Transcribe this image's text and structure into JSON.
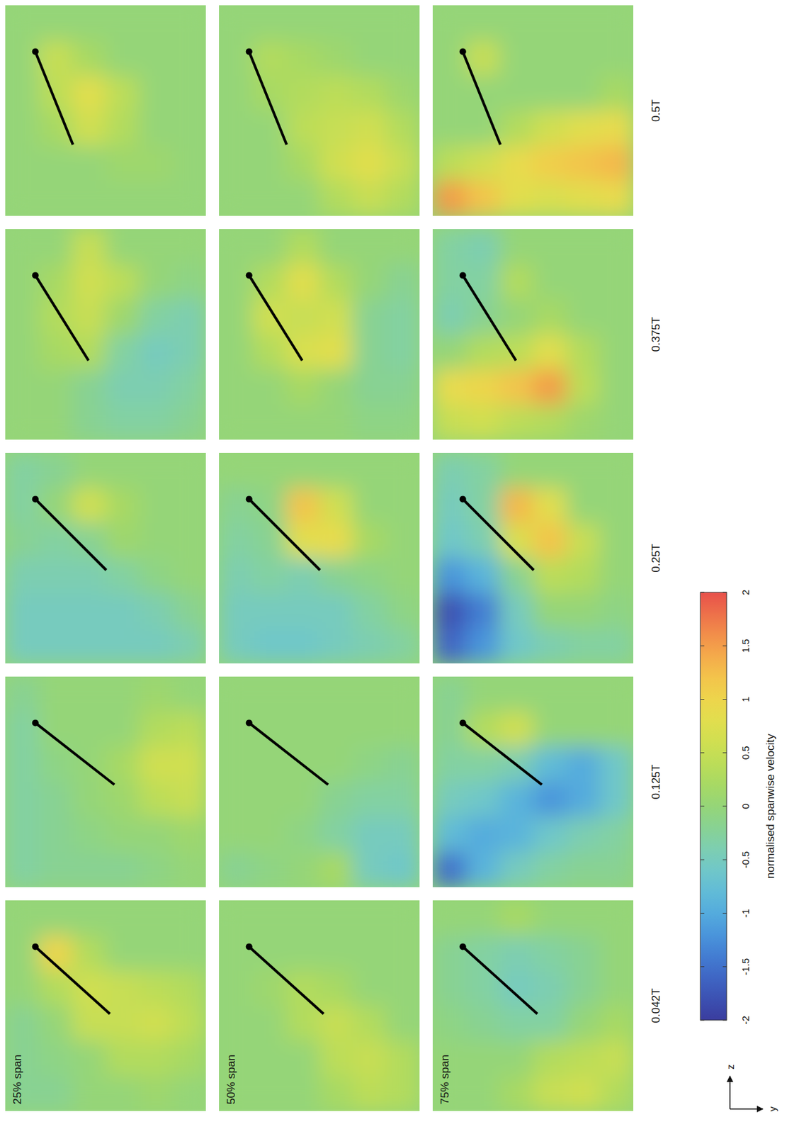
{
  "chart_data": {
    "type": "heatmap",
    "row_labels": [
      "25% span",
      "50% span",
      "75% span"
    ],
    "column_labels": [
      "0.042T",
      "0.125T",
      "0.25T",
      "0.375T",
      "0.5T"
    ],
    "axis_labels": {
      "vertical": "z",
      "horizontal": "y"
    },
    "colorbar": {
      "label": "normalised spanwise velocity",
      "range": [
        -2,
        2
      ],
      "ticks": [
        -2,
        -1.5,
        -1,
        -0.5,
        0,
        0.5,
        1,
        1.5,
        2
      ]
    },
    "panels": [
      [
        {
          "pitch": -42,
          "cells": [
            [
              0,
              0,
              0,
              0,
              0,
              0
            ],
            [
              0,
              1.0,
              0.3,
              0,
              0,
              0
            ],
            [
              0,
              0.3,
              0.6,
              0.5,
              0.4,
              0.3
            ],
            [
              -0.2,
              0,
              0.5,
              0.5,
              0.6,
              0.4
            ],
            [
              -0.2,
              -0.1,
              0,
              0.3,
              0.3,
              0.2
            ],
            [
              -0.2,
              -0.2,
              0,
              0,
              0.1,
              0
            ]
          ]
        },
        {
          "pitch": -38,
          "cells": [
            [
              -0.2,
              0,
              0,
              0,
              0.1,
              0
            ],
            [
              -0.3,
              0,
              0,
              0,
              0.3,
              0.4
            ],
            [
              -0.3,
              -0.1,
              0,
              0.2,
              0.6,
              0.6
            ],
            [
              -0.3,
              -0.2,
              0,
              0.1,
              0.4,
              0.5
            ],
            [
              -0.3,
              -0.2,
              -0.1,
              0,
              0,
              0.1
            ],
            [
              -0.3,
              -0.2,
              -0.2,
              -0.2,
              -0.1,
              0
            ]
          ]
        },
        {
          "pitch": -45,
          "cells": [
            [
              -0.3,
              -0.2,
              0,
              0,
              0,
              0
            ],
            [
              -0.3,
              0,
              0.6,
              0.2,
              0,
              0
            ],
            [
              -0.2,
              -0.3,
              -0.2,
              0.1,
              0,
              0
            ],
            [
              -0.4,
              -0.4,
              -0.4,
              -0.3,
              -0.1,
              0
            ],
            [
              -0.5,
              -0.5,
              -0.5,
              -0.5,
              -0.4,
              -0.2
            ],
            [
              -0.5,
              -0.5,
              -0.5,
              -0.5,
              -0.5,
              -0.4
            ]
          ]
        },
        {
          "pitch": -58,
          "cells": [
            [
              0,
              0,
              0.5,
              0,
              0,
              0
            ],
            [
              0,
              0.2,
              0.6,
              0.4,
              0,
              -0.1
            ],
            [
              0,
              0.3,
              0.5,
              0.1,
              -0.3,
              -0.4
            ],
            [
              0,
              0.2,
              0.3,
              -0.3,
              -0.5,
              -0.4
            ],
            [
              0,
              0,
              -0.2,
              -0.4,
              -0.4,
              -0.3
            ],
            [
              0,
              0,
              -0.2,
              -0.3,
              -0.3,
              -0.2
            ]
          ]
        },
        {
          "pitch": -68,
          "cells": [
            [
              0,
              0,
              0,
              0,
              0,
              0
            ],
            [
              0,
              0.5,
              0.2,
              0,
              0,
              0
            ],
            [
              0,
              0.4,
              0.8,
              0.4,
              0,
              0
            ],
            [
              0,
              0.2,
              0.6,
              0.3,
              0,
              0
            ],
            [
              0,
              0,
              0,
              0.1,
              0.1,
              0
            ],
            [
              0,
              0,
              0,
              0,
              0,
              0
            ]
          ]
        }
      ],
      [
        {
          "pitch": -42,
          "cells": [
            [
              0,
              0,
              0,
              0,
              0,
              0
            ],
            [
              0,
              0,
              0,
              0,
              0,
              0
            ],
            [
              0,
              0.1,
              0.3,
              0.2,
              0,
              0
            ],
            [
              0,
              0,
              0.3,
              0.5,
              0.3,
              0
            ],
            [
              0,
              0,
              0,
              0.4,
              0.5,
              0.3
            ],
            [
              0,
              0,
              0,
              0.2,
              0.4,
              0.3
            ]
          ]
        },
        {
          "pitch": -38,
          "cells": [
            [
              0,
              0,
              0,
              0,
              0,
              0
            ],
            [
              0,
              0,
              0,
              0,
              0,
              0
            ],
            [
              0,
              0,
              0,
              0,
              -0.1,
              -0.2
            ],
            [
              0,
              0,
              0,
              -0.2,
              -0.3,
              -0.3
            ],
            [
              0,
              0,
              -0.1,
              -0.3,
              -0.5,
              -0.5
            ],
            [
              -0.2,
              -0.1,
              0,
              0.2,
              -0.5,
              -0.6
            ]
          ]
        },
        {
          "pitch": -45,
          "cells": [
            [
              0,
              0,
              0,
              0,
              0,
              0
            ],
            [
              -0.2,
              -0.1,
              1.2,
              0.6,
              0,
              0
            ],
            [
              -0.3,
              -0.2,
              0.8,
              0.9,
              0.2,
              0
            ],
            [
              -0.4,
              -0.3,
              -0.4,
              -0.2,
              -0.1,
              0
            ],
            [
              -0.5,
              -0.5,
              -0.5,
              -0.5,
              -0.3,
              -0.1
            ],
            [
              -0.5,
              -0.6,
              -0.6,
              -0.5,
              -0.4,
              -0.3
            ]
          ]
        },
        {
          "pitch": -58,
          "cells": [
            [
              0,
              0,
              0.3,
              0,
              0,
              0
            ],
            [
              0,
              0.3,
              0.8,
              0.3,
              0,
              -0.2
            ],
            [
              0,
              0.6,
              0.5,
              0.6,
              -0.2,
              -0.3
            ],
            [
              0,
              0.3,
              0.7,
              0.8,
              -0.2,
              -0.3
            ],
            [
              0,
              0,
              0.2,
              0,
              -0.2,
              -0.2
            ],
            [
              0,
              0,
              0,
              0,
              -0.1,
              -0.1
            ]
          ]
        },
        {
          "pitch": -68,
          "cells": [
            [
              0,
              0,
              0,
              0,
              0,
              0
            ],
            [
              0,
              0.3,
              0.2,
              0.1,
              0,
              0
            ],
            [
              0,
              0.2,
              0.3,
              0.4,
              0.3,
              0.1
            ],
            [
              0,
              0,
              0.4,
              0.5,
              0.6,
              0.3
            ],
            [
              0,
              0,
              0.2,
              0.6,
              0.8,
              0.5
            ],
            [
              0,
              0,
              0,
              0.3,
              0.5,
              0.3
            ]
          ]
        }
      ],
      [
        {
          "pitch": -42,
          "cells": [
            [
              0,
              0,
              0.2,
              0,
              0,
              0
            ],
            [
              -0.2,
              -0.3,
              -0.4,
              -0.3,
              -0.2,
              0
            ],
            [
              -0.2,
              -0.3,
              -0.5,
              -0.4,
              -0.2,
              0
            ],
            [
              -0.1,
              -0.2,
              -0.3,
              -0.3,
              0,
              0.2
            ],
            [
              0,
              0,
              0,
              0.3,
              0.4,
              0.5
            ],
            [
              0,
              0,
              0.2,
              0.5,
              0.6,
              0.3
            ]
          ]
        },
        {
          "pitch": -38,
          "cells": [
            [
              -0.2,
              0,
              0,
              0,
              0,
              0
            ],
            [
              -0.2,
              0.3,
              0.6,
              0,
              0,
              0
            ],
            [
              -0.3,
              -0.3,
              -0.4,
              -0.8,
              -1.0,
              -0.6
            ],
            [
              -0.5,
              -0.6,
              -0.9,
              -1.2,
              -1.0,
              -0.6
            ],
            [
              -0.8,
              -1.0,
              -0.9,
              -0.6,
              -0.4,
              -0.3
            ],
            [
              -1.5,
              -0.9,
              -0.5,
              -0.3,
              -0.2,
              -0.2
            ]
          ]
        },
        {
          "pitch": -45,
          "cells": [
            [
              -0.4,
              -0.3,
              0,
              0,
              0,
              0
            ],
            [
              -0.5,
              -0.3,
              1.3,
              0.8,
              0,
              0
            ],
            [
              -0.6,
              -0.4,
              0.7,
              1.2,
              0.5,
              0
            ],
            [
              -1.2,
              -0.9,
              -0.2,
              0.4,
              0.3,
              0
            ],
            [
              -1.8,
              -1.4,
              -0.5,
              0,
              0,
              -0.1
            ],
            [
              -1.6,
              -1.2,
              -0.6,
              -0.4,
              -0.3,
              -0.3
            ]
          ]
        },
        {
          "pitch": -58,
          "cells": [
            [
              -0.3,
              -0.4,
              0,
              0,
              0,
              0
            ],
            [
              -0.3,
              -0.3,
              0.3,
              0,
              0,
              0
            ],
            [
              -0.4,
              -0.2,
              0,
              0.2,
              0,
              0
            ],
            [
              0,
              0.3,
              0.4,
              0.8,
              0.3,
              0
            ],
            [
              0.9,
              1.0,
              1.2,
              1.5,
              0.4,
              0
            ],
            [
              0.5,
              0.6,
              0.4,
              0.3,
              0.1,
              0
            ]
          ]
        },
        {
          "pitch": -68,
          "cells": [
            [
              0,
              0,
              0,
              0,
              0,
              0
            ],
            [
              0,
              0.5,
              0,
              0,
              0,
              0
            ],
            [
              0,
              0,
              0,
              0,
              0,
              0.2
            ],
            [
              0,
              0,
              0.3,
              0.6,
              0.8,
              0.9
            ],
            [
              0.4,
              0.6,
              0.9,
              1.1,
              1.2,
              1.3
            ],
            [
              1.5,
              1.2,
              0.8,
              0.7,
              0.8,
              0.9
            ]
          ]
        }
      ]
    ]
  }
}
